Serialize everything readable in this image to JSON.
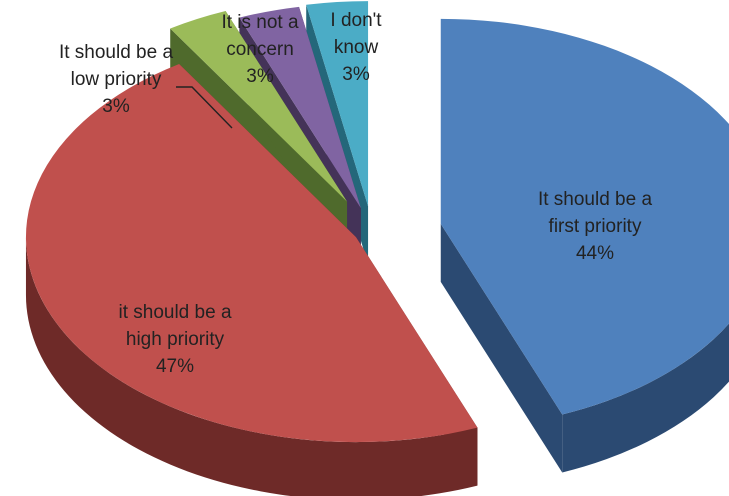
{
  "chart_data": {
    "type": "pie",
    "style": "exploded-3d",
    "title": "",
    "categories": [
      "It should be a first priority",
      "it should be a high priority",
      "It should be a low priority",
      "It is not a concern",
      "I don't know"
    ],
    "values": [
      44,
      47,
      3,
      3,
      3
    ],
    "value_labels": [
      "44%",
      "47%",
      "3%",
      "3%",
      "3%"
    ],
    "label_lines": [
      [
        "It should be a",
        "first priority",
        "44%"
      ],
      [
        "it should be a",
        "high priority",
        "47%"
      ],
      [
        "It should be a",
        "low priority",
        "3%"
      ],
      [
        "It is not a",
        "concern",
        "3%"
      ],
      [
        "I don't",
        "know",
        "3%"
      ]
    ],
    "colors": [
      "#4f81bd",
      "#c0504d",
      "#9bbb59",
      "#8064a2",
      "#4bacc6"
    ],
    "side_colors": [
      "#2b4a72",
      "#6e2a28",
      "#4f6a2c",
      "#443358",
      "#24677a"
    ],
    "legend": "none",
    "grid": false
  }
}
